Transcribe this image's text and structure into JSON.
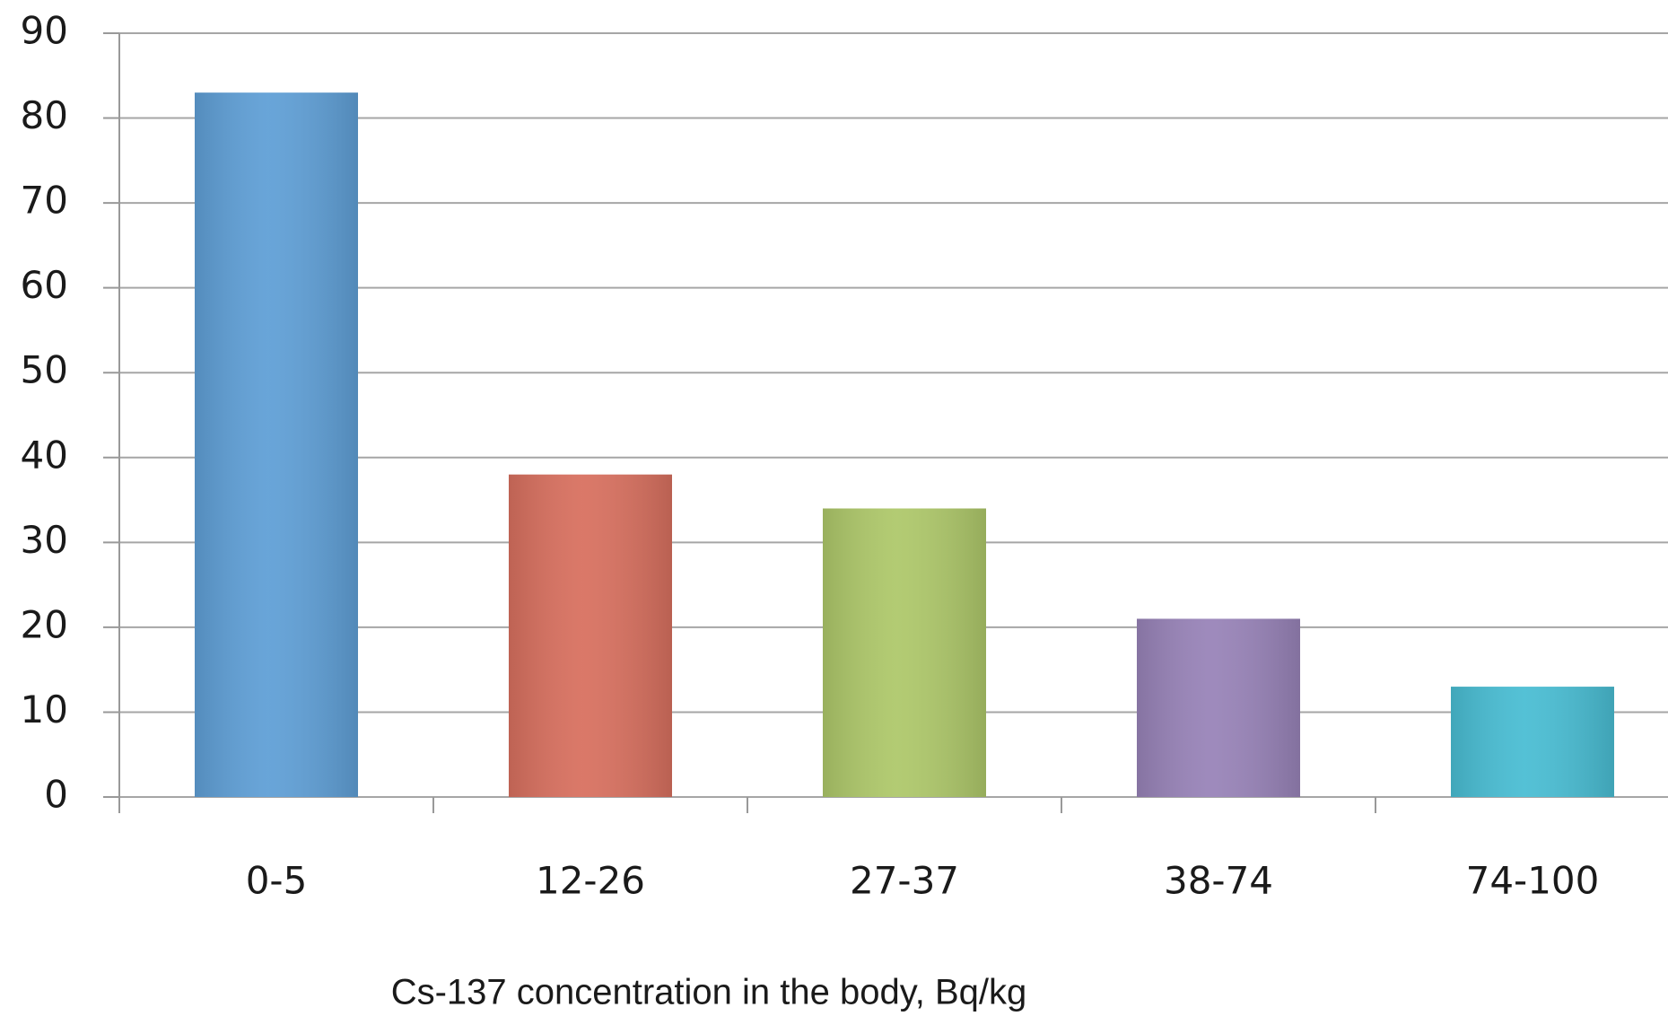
{
  "chart_data": {
    "type": "bar",
    "xlabel": "Cs-137 concentration in the body, Bq/kg",
    "categories": [
      "0-5",
      "12-26",
      "27-37",
      "38-74",
      "74-100"
    ],
    "values": [
      83,
      38,
      34,
      21,
      13
    ],
    "colors": [
      "#5f9fd6",
      "#d8705f",
      "#aec86a",
      "#9883b8",
      "#49bdd3"
    ],
    "ylim": [
      0,
      90
    ],
    "yticks": [
      0,
      10,
      20,
      30,
      40,
      50,
      60,
      70,
      80,
      90
    ],
    "grid": true
  }
}
